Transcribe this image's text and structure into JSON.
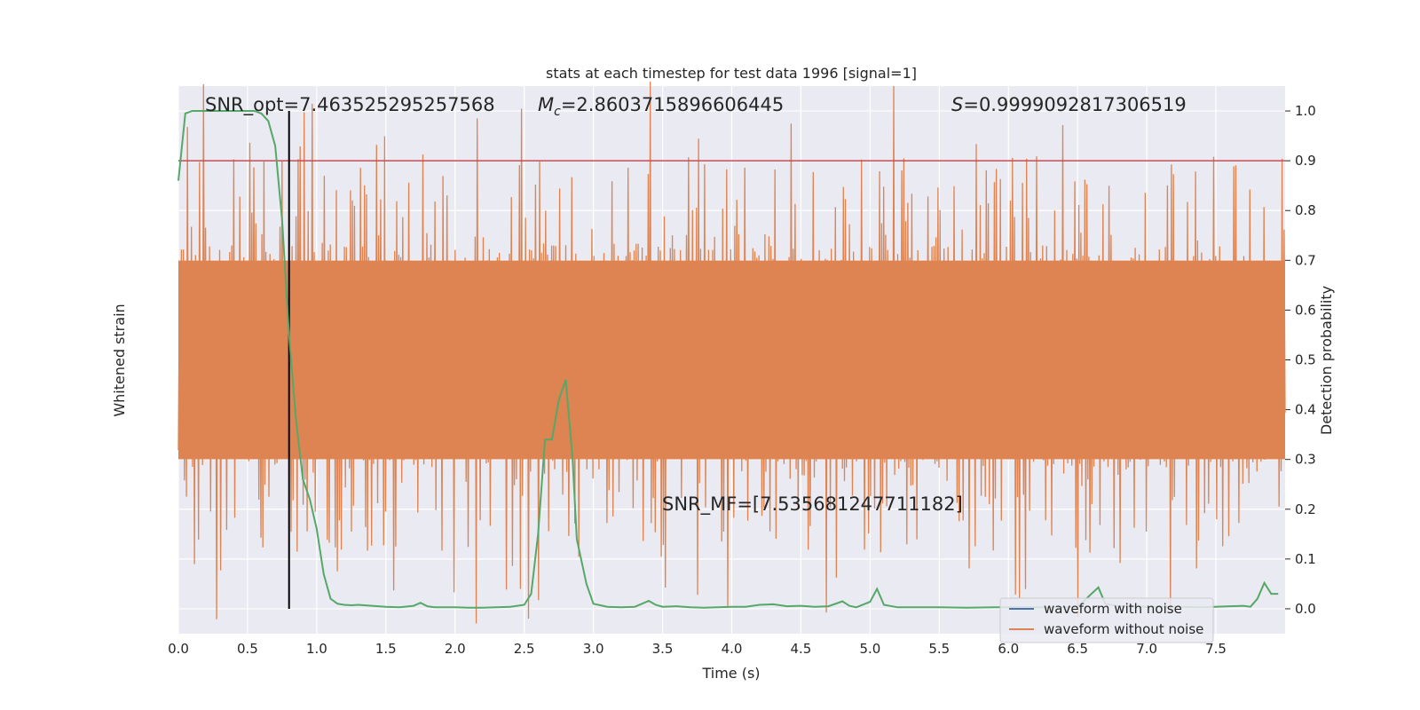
{
  "chart_data": {
    "type": "line",
    "title": "stats at each timestep for test data 1996 [signal=1]",
    "xlabel": "Time (s)",
    "ylabel_left": "Whitened strain",
    "ylabel_right": "Detection probability",
    "xlim": [
      0,
      8
    ],
    "ylim_right": [
      -0.05,
      1.05
    ],
    "x_ticks": [
      "0.0",
      "0.5",
      "1.0",
      "1.5",
      "2.0",
      "2.5",
      "3.0",
      "3.5",
      "4.0",
      "4.5",
      "5.0",
      "5.5",
      "6.0",
      "6.5",
      "7.0",
      "7.5"
    ],
    "y_ticks_right": [
      "0.0",
      "0.1",
      "0.2",
      "0.3",
      "0.4",
      "0.5",
      "0.6",
      "0.7",
      "0.8",
      "0.9",
      "1.0"
    ],
    "grid": true,
    "legend_position": "bottom-right",
    "annotations": {
      "snr_opt": "SNR_opt=7.463525295257568",
      "mc_symbol": "M",
      "mc_sub": "c",
      "mc_value": "=2.8603715896606445",
      "s_symbol": "S",
      "s_value": "=0.9999092817306519",
      "snr_mf": "SNR_MF=[7.535681247711182]"
    },
    "series": [
      {
        "name": "waveform with noise",
        "color": "#4c72b0"
      },
      {
        "name": "waveform without noise",
        "color": "#dd8452"
      }
    ],
    "detection_probability": {
      "color": "#55a868",
      "x": [
        0.0,
        0.05,
        0.1,
        0.15,
        0.2,
        0.3,
        0.4,
        0.5,
        0.55,
        0.6,
        0.65,
        0.7,
        0.75,
        0.8,
        0.85,
        0.9,
        0.95,
        1.0,
        1.05,
        1.1,
        1.15,
        1.2,
        1.25,
        1.3,
        1.4,
        1.5,
        1.6,
        1.7,
        1.75,
        1.8,
        1.85,
        1.9,
        2.0,
        2.1,
        2.2,
        2.3,
        2.4,
        2.5,
        2.55,
        2.6,
        2.65,
        2.7,
        2.75,
        2.8,
        2.85,
        2.88,
        2.95,
        3.0,
        3.05,
        3.1,
        3.2,
        3.3,
        3.4,
        3.45,
        3.5,
        3.6,
        3.7,
        3.8,
        3.9,
        4.0,
        4.1,
        4.2,
        4.3,
        4.4,
        4.5,
        4.6,
        4.7,
        4.8,
        4.85,
        4.9,
        5.0,
        5.05,
        5.1,
        5.2,
        5.3,
        5.5,
        5.7,
        5.9,
        6.1,
        6.3,
        6.5,
        6.6,
        6.65,
        6.7,
        6.8,
        7.0,
        7.2,
        7.4,
        7.6,
        7.7,
        7.75,
        7.8,
        7.85,
        7.9,
        7.95
      ],
      "y": [
        0.86,
        0.995,
        1.0,
        1.0,
        1.0,
        1.0,
        1.0,
        1.0,
        1.0,
        0.995,
        0.98,
        0.93,
        0.78,
        0.55,
        0.38,
        0.26,
        0.22,
        0.16,
        0.07,
        0.02,
        0.01,
        0.008,
        0.007,
        0.008,
        0.006,
        0.004,
        0.003,
        0.006,
        0.012,
        0.005,
        0.003,
        0.003,
        0.003,
        0.002,
        0.002,
        0.003,
        0.004,
        0.008,
        0.03,
        0.15,
        0.34,
        0.34,
        0.42,
        0.46,
        0.3,
        0.14,
        0.05,
        0.01,
        0.007,
        0.004,
        0.003,
        0.004,
        0.016,
        0.008,
        0.004,
        0.005,
        0.003,
        0.002,
        0.003,
        0.004,
        0.004,
        0.008,
        0.009,
        0.005,
        0.006,
        0.004,
        0.005,
        0.015,
        0.006,
        0.003,
        0.014,
        0.04,
        0.008,
        0.003,
        0.003,
        0.003,
        0.002,
        0.003,
        0.003,
        0.003,
        0.004,
        0.03,
        0.043,
        0.01,
        0.005,
        0.004,
        0.004,
        0.003,
        0.005,
        0.006,
        0.004,
        0.02,
        0.052,
        0.03,
        0.03
      ]
    },
    "threshold": {
      "value": 0.9,
      "color": "#c44e52"
    },
    "vertical_marker": {
      "x": 0.8,
      "color": "#000000"
    }
  }
}
